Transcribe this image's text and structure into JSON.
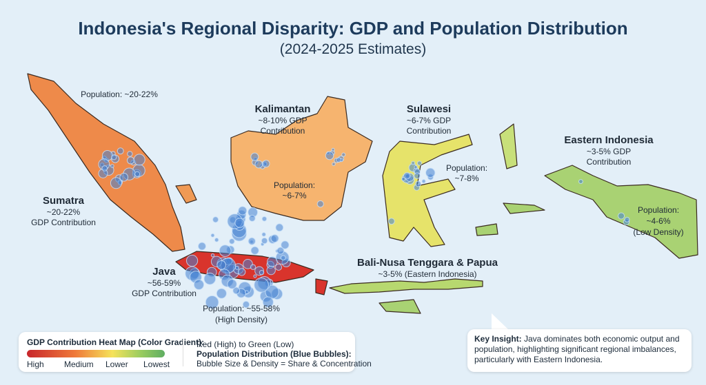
{
  "title": "Indonesia's Regional Disparity: GDP and Population Distribution",
  "subtitle": "(2024-2025 Estimates)",
  "regions": {
    "sumatra": {
      "name": "Sumatra",
      "gdp": "~20-22%",
      "gdp_label": "GDP Contribution",
      "population": "Population: ~20-22%",
      "color": "#ee8a4a"
    },
    "kalimantan": {
      "name": "Kalimantan",
      "gdp": "~8-10% GDP",
      "gdp_label": "Contribution",
      "population_label": "Population:",
      "population": "~6-7%",
      "color": "#f6b46f"
    },
    "sulawesi": {
      "name": "Sulawesi",
      "gdp": "~6-7% GDP",
      "gdp_label": "Contribution",
      "population_label": "Population:",
      "population": "~7-8%",
      "color": "#e6e36a"
    },
    "eastern": {
      "name": "Eastern Indonesia",
      "gdp": "~3-5% GDP",
      "gdp_label": "Contribution",
      "population_label": "Population:",
      "population": "~4-6%",
      "density": "(Low Density)",
      "color": "#a9d273"
    },
    "java": {
      "name": "Java",
      "gdp": "~56-59%",
      "gdp_label": "GDP Contribution",
      "population": "Population: ~55-58%",
      "density": "(High Density)",
      "color": "#d9342c"
    },
    "bali": {
      "name": "Bali-Nusa Tenggara & Papua",
      "gdp": "~3-5% (Eastern Indonesia)",
      "color": "#b7d86f"
    }
  },
  "legend": {
    "heading": "GDP Contribution Heat Map (Color Gradient):",
    "scale": [
      "High",
      "Medium",
      "Lower",
      "Lowest"
    ],
    "gradient_desc": "Red (High) to Green (Low)",
    "bubble_heading": "Population Distribution (Blue Bubbles):",
    "bubble_desc": "Bubble Size & Density = Share & Concentration"
  },
  "insight": {
    "bold": "Key Insight:",
    "text": " Java dominates both economic output and population, highlighting significant regional imbalances, particularly with Eastern Indonesia."
  }
}
